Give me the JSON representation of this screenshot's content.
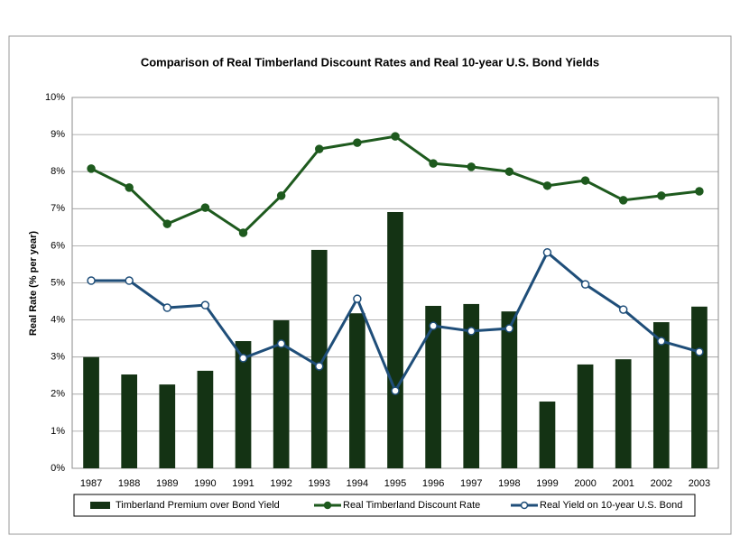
{
  "chart_data": {
    "type": "combo",
    "title": "Comparison of Real Timberland Discount Rates and Real 10-year U.S. Bond Yields",
    "y_label": "Real Rate (% per year)",
    "categories": [
      "1987",
      "1988",
      "1989",
      "1990",
      "1991",
      "1992",
      "1993",
      "1994",
      "1995",
      "1996",
      "1997",
      "1998",
      "1999",
      "2000",
      "2001",
      "2002",
      "2003"
    ],
    "ylim": [
      0,
      10
    ],
    "yticks": [
      {
        "value": 0,
        "label": "0%"
      },
      {
        "value": 1,
        "label": "1%"
      },
      {
        "value": 2,
        "label": "2%"
      },
      {
        "value": 3,
        "label": "3%"
      },
      {
        "value": 4,
        "label": "4%"
      },
      {
        "value": 5,
        "label": "5%"
      },
      {
        "value": 6,
        "label": "6%"
      },
      {
        "value": 7,
        "label": "7%"
      },
      {
        "value": 8,
        "label": "8%"
      },
      {
        "value": 9,
        "label": "9%"
      },
      {
        "value": 10,
        "label": "10%"
      }
    ],
    "grid": true,
    "legend": "bottom",
    "series": [
      {
        "name": "Timberland Premium over Bond Yield",
        "type": "bar",
        "color": "#143314",
        "values": [
          3.0,
          2.53,
          2.26,
          2.63,
          3.43,
          3.99,
          5.89,
          4.18,
          6.91,
          4.38,
          4.43,
          4.23,
          1.8,
          2.8,
          2.94,
          3.94,
          4.36
        ]
      },
      {
        "name": "Real Timberland Discount Rate",
        "type": "line",
        "marker": "filled",
        "color": "#1e5a1e",
        "values": [
          8.08,
          7.57,
          6.59,
          7.03,
          6.35,
          7.35,
          8.61,
          8.78,
          8.95,
          8.22,
          8.13,
          8.0,
          7.62,
          7.76,
          7.23,
          7.35,
          7.47
        ]
      },
      {
        "name": "Real Yield on 10-year U.S. Bond",
        "type": "line",
        "marker": "hollow",
        "color": "#1f4e79",
        "values": [
          5.06,
          5.06,
          4.33,
          4.4,
          2.97,
          3.36,
          2.75,
          4.57,
          2.09,
          3.84,
          3.7,
          3.77,
          5.82,
          4.96,
          4.28,
          3.43,
          3.14
        ]
      }
    ]
  }
}
